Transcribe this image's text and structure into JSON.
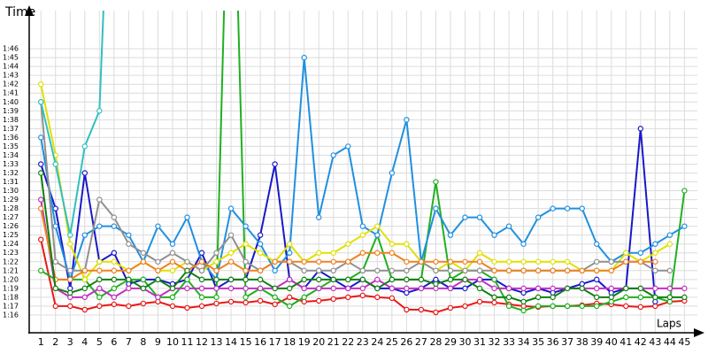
{
  "chart_data": {
    "type": "line",
    "y_label": "Time",
    "x_label": "Laps",
    "x": [
      1,
      2,
      3,
      4,
      5,
      6,
      7,
      8,
      9,
      10,
      11,
      12,
      13,
      14,
      15,
      16,
      17,
      18,
      19,
      20,
      21,
      22,
      23,
      24,
      25,
      26,
      27,
      28,
      29,
      30,
      31,
      32,
      33,
      34,
      35,
      36,
      37,
      38,
      39,
      40,
      41,
      42,
      43,
      44,
      45
    ],
    "xlim": [
      0.2,
      45.4
    ],
    "ylim": [
      74,
      109
    ],
    "grid": true,
    "yticks": [
      {
        "value": 76,
        "label": "1:16"
      },
      {
        "value": 77,
        "label": "1:17"
      },
      {
        "value": 78,
        "label": "1:18"
      },
      {
        "value": 79,
        "label": "1:19"
      },
      {
        "value": 80,
        "label": "1:20"
      },
      {
        "value": 81,
        "label": "1:21"
      },
      {
        "value": 82,
        "label": "1:22"
      },
      {
        "value": 83,
        "label": "1:23"
      },
      {
        "value": 84,
        "label": "1:24"
      },
      {
        "value": 85,
        "label": "1:25"
      },
      {
        "value": 86,
        "label": "1:26"
      },
      {
        "value": 87,
        "label": "1:27"
      },
      {
        "value": 88,
        "label": "1:28"
      },
      {
        "value": 89,
        "label": "1:29"
      },
      {
        "value": 90,
        "label": "1:30"
      },
      {
        "value": 91,
        "label": "1:31"
      },
      {
        "value": 92,
        "label": "1:32"
      },
      {
        "value": 93,
        "label": "1:33"
      },
      {
        "value": 94,
        "label": "1:34"
      },
      {
        "value": 95,
        "label": "1:35"
      },
      {
        "value": 96,
        "label": "1:36"
      },
      {
        "value": 97,
        "label": "1:37"
      },
      {
        "value": 98,
        "label": "1:38"
      },
      {
        "value": 99,
        "label": "1:39"
      },
      {
        "value": 100,
        "label": "1:40"
      },
      {
        "value": 101,
        "label": "1:41"
      },
      {
        "value": 102,
        "label": "1:42"
      },
      {
        "value": 103,
        "label": "1:43"
      },
      {
        "value": 104,
        "label": "1:44"
      },
      {
        "value": 105,
        "label": "1:45"
      },
      {
        "value": 106,
        "label": "1:46"
      }
    ],
    "series": [
      {
        "color": "#e81818",
        "values": [
          84.5,
          77,
          77,
          76.6,
          77,
          77.2,
          77,
          77.3,
          77.5,
          77,
          76.8,
          77,
          77.3,
          77.5,
          77.4,
          77.6,
          77.2,
          78,
          77.5,
          77.6,
          77.8,
          78,
          78.2,
          78,
          77.9,
          76.6,
          76.6,
          76.3,
          76.8,
          77,
          77.5,
          77.4,
          77.2,
          77,
          76.9,
          77,
          77,
          77.1,
          77.3,
          77.2,
          77,
          76.9,
          77,
          77.5,
          77.6
        ]
      },
      {
        "color": "#1818c8",
        "values": [
          93,
          88,
          79,
          92,
          82,
          83,
          79.5,
          80,
          80,
          79.5,
          80,
          83,
          79,
          80,
          80,
          85,
          93,
          80,
          79,
          81,
          80,
          79,
          80,
          79,
          79,
          78.5,
          79,
          80,
          79,
          79,
          80,
          80,
          79,
          78.5,
          79,
          78.5,
          79,
          79.5,
          80,
          78.5,
          79,
          97,
          77.5,
          null,
          null
        ]
      },
      {
        "color": "#20b020",
        "values": [
          81,
          80,
          80,
          80,
          78,
          79,
          80,
          80,
          78,
          78,
          80,
          78,
          78,
          140,
          78,
          79,
          78,
          77,
          78,
          79,
          80,
          80,
          81,
          85,
          80,
          80,
          80,
          91,
          80,
          81,
          81,
          80,
          77,
          76.5,
          77,
          77,
          77,
          77,
          77,
          77.5,
          78,
          78,
          78,
          77.5,
          90
        ]
      },
      {
        "color": "#2090e0",
        "values": [
          96,
          86,
          80,
          85,
          86,
          86,
          85,
          82,
          86,
          84,
          87,
          82,
          80,
          88,
          86,
          84,
          81,
          83,
          105,
          87,
          94,
          95,
          86,
          85,
          92,
          98,
          82,
          88,
          85,
          87,
          87,
          85,
          86,
          84,
          87,
          88,
          88,
          88,
          84,
          82,
          83,
          83,
          84,
          85,
          86
        ]
      },
      {
        "color": "#e0e000",
        "values": [
          102,
          94,
          84,
          80,
          82,
          82,
          81,
          82,
          81,
          81,
          82,
          81,
          82,
          83,
          84,
          83,
          82,
          84,
          82,
          83,
          83,
          84,
          85,
          86,
          84,
          84,
          82,
          81,
          82,
          81,
          83,
          82,
          82,
          82,
          82,
          82,
          82,
          81,
          81,
          81,
          83,
          82,
          83,
          84,
          null
        ]
      },
      {
        "color": "#c030c0",
        "values": [
          89,
          79,
          78,
          78,
          79,
          78,
          79,
          79,
          78,
          79,
          79,
          79,
          79,
          79,
          79,
          79,
          79,
          80,
          79,
          79,
          79,
          79,
          79,
          80,
          79,
          79,
          79,
          79,
          79,
          80,
          80,
          79,
          79,
          79,
          79,
          79,
          79,
          79,
          79,
          79,
          79,
          79,
          79,
          79,
          79
        ]
      },
      {
        "color": "#909090",
        "values": [
          100,
          82,
          81,
          81,
          89,
          87,
          84,
          83,
          82,
          83,
          82,
          81,
          83,
          85,
          82,
          81,
          82,
          82,
          81,
          81,
          81,
          82,
          81,
          81,
          81,
          81,
          82,
          81,
          81,
          81,
          81,
          81,
          81,
          81,
          81,
          81,
          81,
          81,
          82,
          82,
          82,
          82,
          81,
          81,
          null
        ]
      },
      {
        "color": "#f08020",
        "values": [
          88,
          80,
          80,
          81,
          81,
          81,
          81,
          82,
          81,
          82,
          81,
          82,
          81,
          82,
          81,
          81,
          82,
          82,
          82,
          82,
          82,
          82,
          83,
          83,
          83,
          82,
          82,
          82,
          82,
          82,
          82,
          81,
          81,
          81,
          81,
          81,
          81,
          81,
          81,
          81,
          82,
          82,
          82,
          null,
          null
        ]
      },
      {
        "color": "#30c0c0",
        "values": [
          100,
          93,
          85,
          95,
          99,
          140,
          null,
          null,
          null,
          null,
          null,
          null,
          null,
          null,
          null,
          null,
          null,
          null,
          null,
          null,
          null,
          null,
          null,
          null,
          null,
          null,
          null,
          null,
          null,
          null,
          null,
          null,
          null,
          null,
          null,
          null,
          null,
          null,
          null,
          null,
          null,
          null,
          null,
          null,
          null
        ]
      },
      {
        "color": "#108010",
        "values": [
          92,
          79,
          78.5,
          79,
          80,
          80,
          80,
          79,
          80,
          79,
          81,
          80,
          80,
          80,
          80,
          80,
          79,
          79,
          80,
          80,
          80,
          80,
          80,
          79,
          80,
          80,
          80,
          79.5,
          80,
          80,
          79,
          78,
          78,
          77.5,
          78,
          78,
          79,
          79,
          78,
          78,
          79,
          79,
          78,
          78,
          78
        ]
      }
    ]
  }
}
